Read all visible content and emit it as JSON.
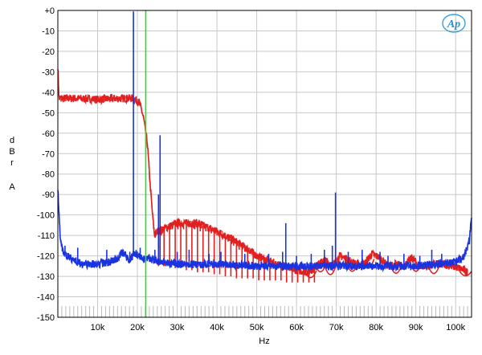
{
  "chart_data": {
    "type": "line",
    "title": "",
    "xlabel": "Hz",
    "ylabel": [
      "d",
      "B",
      "r",
      "",
      "A"
    ],
    "logo": "Ap",
    "xlim": [
      0,
      104000
    ],
    "ylim": [
      -150,
      0
    ],
    "grid": true,
    "x_ticks": [
      {
        "v": 10000,
        "label": "10k"
      },
      {
        "v": 20000,
        "label": "20k"
      },
      {
        "v": 30000,
        "label": "30k"
      },
      {
        "v": 40000,
        "label": "40k"
      },
      {
        "v": 50000,
        "label": "50k"
      },
      {
        "v": 60000,
        "label": "60k"
      },
      {
        "v": 70000,
        "label": "70k"
      },
      {
        "v": 80000,
        "label": "80k"
      },
      {
        "v": 90000,
        "label": "90k"
      },
      {
        "v": 100000,
        "label": "100k"
      }
    ],
    "y_ticks": [
      {
        "v": 0,
        "label": "+0"
      },
      {
        "v": -10,
        "label": "-10"
      },
      {
        "v": -20,
        "label": "-20"
      },
      {
        "v": -30,
        "label": "-30"
      },
      {
        "v": -40,
        "label": "-40"
      },
      {
        "v": -50,
        "label": "-50"
      },
      {
        "v": -60,
        "label": "-60"
      },
      {
        "v": -70,
        "label": "-70"
      },
      {
        "v": -80,
        "label": "-80"
      },
      {
        "v": -90,
        "label": "-90"
      },
      {
        "v": -100,
        "label": "-100"
      },
      {
        "v": -110,
        "label": "-110"
      },
      {
        "v": -120,
        "label": "-120"
      },
      {
        "v": -130,
        "label": "-130"
      },
      {
        "v": -140,
        "label": "-140"
      },
      {
        "v": -150,
        "label": "-150"
      }
    ],
    "series": [
      {
        "color": "#e02020",
        "band": [
          [
            0,
            -27
          ],
          [
            300,
            -43
          ],
          [
            5000,
            -43
          ],
          [
            10000,
            -43.5
          ],
          [
            15000,
            -43
          ],
          [
            19000,
            -43
          ],
          [
            20500,
            -45
          ],
          [
            21500,
            -52
          ],
          [
            22500,
            -65
          ],
          [
            23200,
            -85
          ],
          [
            23800,
            -100
          ],
          [
            24300,
            -110
          ],
          [
            25000,
            -108
          ],
          [
            30000,
            -104
          ],
          [
            35000,
            -104
          ],
          [
            40000,
            -108
          ],
          [
            44000,
            -112
          ],
          [
            48000,
            -117
          ],
          [
            50000,
            -120
          ],
          [
            55000,
            -124
          ],
          [
            60000,
            -127
          ],
          [
            63000,
            -128
          ],
          [
            65000,
            -125
          ],
          [
            67000,
            -122
          ],
          [
            69000,
            -125
          ],
          [
            71000,
            -120
          ],
          [
            73000,
            -122
          ],
          [
            75000,
            -124
          ],
          [
            77000,
            -124
          ],
          [
            79000,
            -119
          ],
          [
            81000,
            -121
          ],
          [
            83000,
            -125
          ],
          [
            85000,
            -124
          ],
          [
            87000,
            -125
          ],
          [
            89000,
            -121
          ],
          [
            91000,
            -125
          ],
          [
            93000,
            -125
          ],
          [
            95000,
            -124
          ],
          [
            97000,
            -124
          ],
          [
            99000,
            -125
          ],
          [
            101000,
            -126
          ],
          [
            102000,
            -127
          ],
          [
            103000,
            -128
          ]
        ],
        "spikes": [
          [
            24500,
            -108
          ],
          [
            25300,
            -125
          ],
          [
            26000,
            -110
          ],
          [
            26700,
            -125
          ],
          [
            27400,
            -108
          ],
          [
            28100,
            -125
          ],
          [
            28800,
            -107
          ],
          [
            29500,
            -126
          ],
          [
            30200,
            -107
          ],
          [
            30900,
            -126
          ],
          [
            31600,
            -107
          ],
          [
            32300,
            -127
          ],
          [
            33000,
            -106
          ],
          [
            33700,
            -127
          ],
          [
            34400,
            -107
          ],
          [
            35100,
            -128
          ],
          [
            35800,
            -108
          ],
          [
            36500,
            -128
          ],
          [
            37200,
            -108
          ],
          [
            37900,
            -128
          ],
          [
            38600,
            -109
          ],
          [
            39300,
            -129
          ],
          [
            40000,
            -110
          ],
          [
            40700,
            -129
          ],
          [
            41400,
            -112
          ],
          [
            42100,
            -130
          ],
          [
            42800,
            -113
          ],
          [
            43500,
            -130
          ],
          [
            44200,
            -115
          ],
          [
            44900,
            -131
          ],
          [
            45600,
            -117
          ],
          [
            46300,
            -131
          ],
          [
            47000,
            -118
          ],
          [
            47700,
            -131
          ],
          [
            48400,
            -119
          ],
          [
            49100,
            -131
          ],
          [
            49800,
            -120
          ],
          [
            50500,
            -132
          ],
          [
            51200,
            -121
          ],
          [
            51900,
            -132
          ],
          [
            52600,
            -121
          ],
          [
            53300,
            -132
          ],
          [
            54000,
            -122
          ],
          [
            54700,
            -132
          ],
          [
            55400,
            -123
          ],
          [
            56100,
            -132
          ],
          [
            56800,
            -123
          ],
          [
            57500,
            -133
          ],
          [
            58200,
            -124
          ],
          [
            58900,
            -133
          ],
          [
            59600,
            -124
          ],
          [
            60300,
            -133
          ],
          [
            61000,
            -125
          ],
          [
            61700,
            -133
          ],
          [
            62400,
            -126
          ],
          [
            63100,
            -133
          ],
          [
            63800,
            -126
          ],
          [
            64500,
            -133
          ]
        ],
        "dips": [
          [
            63500,
            -132
          ],
          [
            66000,
            -130
          ],
          [
            68500,
            -132
          ],
          [
            74000,
            -130
          ],
          [
            78000,
            -128
          ],
          [
            85000,
            -131
          ],
          [
            90000,
            -130
          ],
          [
            94500,
            -131
          ],
          [
            102500,
            -130
          ]
        ]
      },
      {
        "color": "#1a33e0",
        "band": [
          [
            0,
            -86
          ],
          [
            600,
            -112
          ],
          [
            1500,
            -119
          ],
          [
            4000,
            -122
          ],
          [
            6000,
            -124
          ],
          [
            8000,
            -124
          ],
          [
            10000,
            -124
          ],
          [
            13000,
            -123
          ],
          [
            15000,
            -121
          ],
          [
            16000,
            -118
          ],
          [
            17000,
            -119
          ],
          [
            18000,
            -123
          ],
          [
            19000,
            -119
          ],
          [
            20000,
            -119
          ],
          [
            21000,
            -121
          ],
          [
            22000,
            -122
          ],
          [
            23000,
            -121
          ],
          [
            24000,
            -122
          ],
          [
            26000,
            -123
          ],
          [
            30000,
            -124
          ],
          [
            40000,
            -124
          ],
          [
            50000,
            -125
          ],
          [
            60000,
            -125
          ],
          [
            70000,
            -125
          ],
          [
            80000,
            -125
          ],
          [
            90000,
            -125
          ],
          [
            95000,
            -124
          ],
          [
            100000,
            -123
          ],
          [
            102000,
            -121
          ],
          [
            103000,
            -115
          ],
          [
            103500,
            -112
          ],
          [
            104000,
            -100
          ]
        ],
        "spikes": [
          [
            1800,
            -115
          ],
          [
            5000,
            -116
          ],
          [
            12300,
            -117
          ],
          [
            16100,
            -118
          ],
          [
            18100,
            -118
          ],
          [
            19000,
            -0.5
          ],
          [
            20700,
            -116
          ],
          [
            24400,
            -117
          ],
          [
            25300,
            -90
          ],
          [
            25700,
            -61
          ],
          [
            30000,
            -118
          ],
          [
            33000,
            -117
          ],
          [
            38000,
            -119
          ],
          [
            41000,
            -118
          ],
          [
            47000,
            -119
          ],
          [
            53000,
            -119
          ],
          [
            56500,
            -118
          ],
          [
            57300,
            -104
          ],
          [
            60000,
            -120
          ],
          [
            63700,
            -119
          ],
          [
            67000,
            -117
          ],
          [
            69000,
            -115
          ],
          [
            69800,
            -89
          ],
          [
            73000,
            -118
          ],
          [
            76500,
            -117
          ],
          [
            81000,
            -118
          ],
          [
            83000,
            -120
          ],
          [
            87000,
            -119
          ],
          [
            91000,
            -120
          ],
          [
            94000,
            -117
          ],
          [
            96500,
            -119
          ]
        ]
      },
      {
        "color": "#20e020",
        "marker_x": 22100,
        "marker_from": 0,
        "marker_to": -150
      }
    ]
  }
}
